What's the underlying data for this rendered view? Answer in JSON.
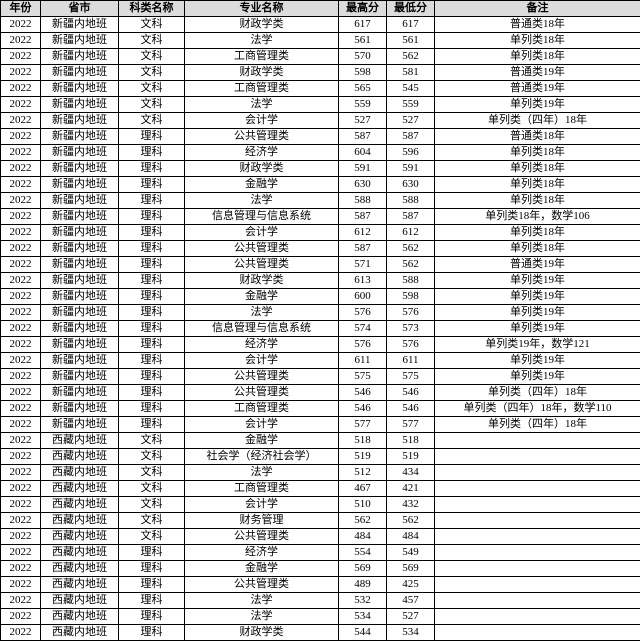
{
  "table": {
    "columns": [
      "年份",
      "省市",
      "科类名称",
      "专业名称",
      "最高分",
      "最低分",
      "备注"
    ],
    "col_classes": [
      "col-year",
      "col-prov",
      "col-subj",
      "col-major",
      "col-max",
      "col-min",
      "col-note"
    ],
    "rows": [
      [
        "2022",
        "新疆内地班",
        "文科",
        "财政学类",
        "617",
        "617",
        "普通类18年"
      ],
      [
        "2022",
        "新疆内地班",
        "文科",
        "法学",
        "561",
        "561",
        "单列类18年"
      ],
      [
        "2022",
        "新疆内地班",
        "文科",
        "工商管理类",
        "570",
        "562",
        "单列类18年"
      ],
      [
        "2022",
        "新疆内地班",
        "文科",
        "财政学类",
        "598",
        "581",
        "普通类19年"
      ],
      [
        "2022",
        "新疆内地班",
        "文科",
        "工商管理类",
        "565",
        "545",
        "普通类19年"
      ],
      [
        "2022",
        "新疆内地班",
        "文科",
        "法学",
        "559",
        "559",
        "单列类19年"
      ],
      [
        "2022",
        "新疆内地班",
        "文科",
        "会计学",
        "527",
        "527",
        "单列类（四年）18年"
      ],
      [
        "2022",
        "新疆内地班",
        "理科",
        "公共管理类",
        "587",
        "587",
        "普通类18年"
      ],
      [
        "2022",
        "新疆内地班",
        "理科",
        "经济学",
        "604",
        "596",
        "单列类18年"
      ],
      [
        "2022",
        "新疆内地班",
        "理科",
        "财政学类",
        "591",
        "591",
        "单列类18年"
      ],
      [
        "2022",
        "新疆内地班",
        "理科",
        "金融学",
        "630",
        "630",
        "单列类18年"
      ],
      [
        "2022",
        "新疆内地班",
        "理科",
        "法学",
        "588",
        "588",
        "单列类18年"
      ],
      [
        "2022",
        "新疆内地班",
        "理科",
        "信息管理与信息系统",
        "587",
        "587",
        "单列类18年，数学106"
      ],
      [
        "2022",
        "新疆内地班",
        "理科",
        "会计学",
        "612",
        "612",
        "单列类18年"
      ],
      [
        "2022",
        "新疆内地班",
        "理科",
        "公共管理类",
        "587",
        "562",
        "单列类18年"
      ],
      [
        "2022",
        "新疆内地班",
        "理科",
        "公共管理类",
        "571",
        "562",
        "普通类19年"
      ],
      [
        "2022",
        "新疆内地班",
        "理科",
        "财政学类",
        "613",
        "588",
        "单列类19年"
      ],
      [
        "2022",
        "新疆内地班",
        "理科",
        "金融学",
        "600",
        "598",
        "单列类19年"
      ],
      [
        "2022",
        "新疆内地班",
        "理科",
        "法学",
        "576",
        "576",
        "单列类19年"
      ],
      [
        "2022",
        "新疆内地班",
        "理科",
        "信息管理与信息系统",
        "574",
        "573",
        "单列类19年"
      ],
      [
        "2022",
        "新疆内地班",
        "理科",
        "经济学",
        "576",
        "576",
        "单列类19年，数学121"
      ],
      [
        "2022",
        "新疆内地班",
        "理科",
        "会计学",
        "611",
        "611",
        "单列类19年"
      ],
      [
        "2022",
        "新疆内地班",
        "理科",
        "公共管理类",
        "575",
        "575",
        "单列类19年"
      ],
      [
        "2022",
        "新疆内地班",
        "理科",
        "公共管理类",
        "546",
        "546",
        "单列类（四年）18年"
      ],
      [
        "2022",
        "新疆内地班",
        "理科",
        "工商管理类",
        "546",
        "546",
        "单列类（四年）18年，数学110"
      ],
      [
        "2022",
        "新疆内地班",
        "理科",
        "会计学",
        "577",
        "577",
        "单列类（四年）18年"
      ],
      [
        "2022",
        "西藏内地班",
        "文科",
        "金融学",
        "518",
        "518",
        ""
      ],
      [
        "2022",
        "西藏内地班",
        "文科",
        "社会学（经济社会学）",
        "519",
        "519",
        ""
      ],
      [
        "2022",
        "西藏内地班",
        "文科",
        "法学",
        "512",
        "434",
        ""
      ],
      [
        "2022",
        "西藏内地班",
        "文科",
        "工商管理类",
        "467",
        "421",
        ""
      ],
      [
        "2022",
        "西藏内地班",
        "文科",
        "会计学",
        "510",
        "432",
        ""
      ],
      [
        "2022",
        "西藏内地班",
        "文科",
        "财务管理",
        "562",
        "562",
        ""
      ],
      [
        "2022",
        "西藏内地班",
        "文科",
        "公共管理类",
        "484",
        "484",
        ""
      ],
      [
        "2022",
        "西藏内地班",
        "理科",
        "经济学",
        "554",
        "549",
        ""
      ],
      [
        "2022",
        "西藏内地班",
        "理科",
        "金融学",
        "569",
        "569",
        ""
      ],
      [
        "2022",
        "西藏内地班",
        "理科",
        "公共管理类",
        "489",
        "425",
        ""
      ],
      [
        "2022",
        "西藏内地班",
        "理科",
        "法学",
        "532",
        "457",
        ""
      ],
      [
        "2022",
        "西藏内地班",
        "理科",
        "法学",
        "534",
        "527",
        ""
      ],
      [
        "2022",
        "西藏内地班",
        "理科",
        "财政学类",
        "544",
        "534",
        ""
      ]
    ]
  }
}
